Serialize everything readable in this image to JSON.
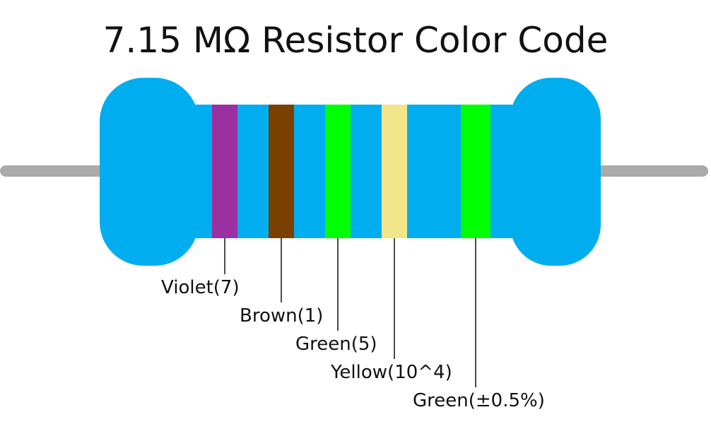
{
  "title": "7.15 MΩ Resistor Color Code",
  "colors": {
    "body": "#00aeef",
    "lead": "#aaaaaa",
    "line": "#111111"
  },
  "bands": [
    {
      "label": "Violet(7)",
      "color": "#9b30a0"
    },
    {
      "label": "Brown(1)",
      "color": "#7b3f00"
    },
    {
      "label": "Green(5)",
      "color": "#00ff00"
    },
    {
      "label": "Yellow(10^4)",
      "color": "#f3e68a"
    },
    {
      "label": "Green(±0.5%)",
      "color": "#00ff00"
    }
  ]
}
